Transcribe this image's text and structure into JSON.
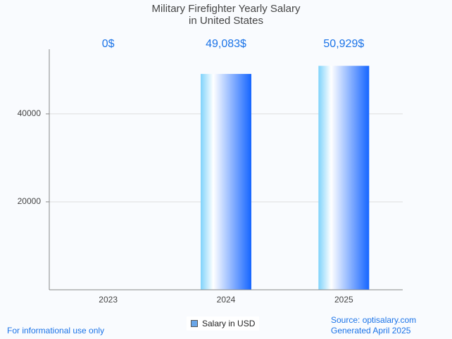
{
  "chart_data": {
    "type": "bar",
    "title": "Military Firefighter Yearly Salary",
    "subtitle": "in United States",
    "categories": [
      "2023",
      "2024",
      "2025"
    ],
    "values": [
      0,
      49083,
      50929
    ],
    "value_labels": [
      "0$",
      "49,083$",
      "50,929$"
    ],
    "xlabel": "",
    "ylabel": "",
    "yticks": [
      20000,
      40000
    ],
    "ytick_labels": [
      "20000",
      "40000"
    ],
    "ylim": [
      0,
      54700
    ],
    "grid": true,
    "legend": {
      "entries": [
        "Salary in USD"
      ],
      "placement": "bottom-center"
    },
    "colors": {
      "bar_left": "#7fd3fb",
      "bar_mid": "#ffffff",
      "bar_right": "#1565ff",
      "label": "#1a73e8"
    }
  },
  "footer": {
    "disclaimer": "For informational use only",
    "source": "Source: optisalary.com",
    "generated": "Generated April 2025"
  }
}
